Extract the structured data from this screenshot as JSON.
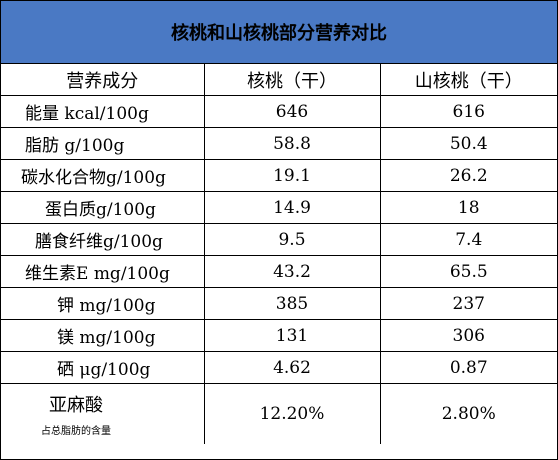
{
  "title": "核桃和山核桃部分营养对比",
  "headers": [
    "营养成分",
    "核桃（干）",
    "山核桃（干）"
  ],
  "rows": [
    {
      "label": "能量 kcal/100g",
      "walnut": "646",
      "pecan": "616"
    },
    {
      "label": "脂肪 g/100g",
      "walnut": "58.8",
      "pecan": "50.4"
    },
    {
      "label": "碳水化合物g/100g",
      "walnut": "19.1",
      "pecan": "26.2"
    },
    {
      "label": "蛋白质g/100g",
      "walnut": "14.9",
      "pecan": "18"
    },
    {
      "label": "膳食纤维g/100g",
      "walnut": "9.5",
      "pecan": "7.4"
    },
    {
      "label": "维生素E mg/100g",
      "walnut": "43.2",
      "pecan": "65.5"
    },
    {
      "label": "钾 mg/100g",
      "walnut": "385",
      "pecan": "237"
    },
    {
      "label": "镁 mg/100g",
      "walnut": "131",
      "pecan": "306"
    },
    {
      "label": "硒 μg/100g",
      "walnut": "4.62",
      "pecan": "0.87"
    }
  ],
  "last_row": {
    "label": "亚麻酸",
    "note": "占总脂肪的含量",
    "walnut": "12.20%",
    "pecan": "2.80%"
  },
  "colors": {
    "title_background": "#4a79c4"
  }
}
